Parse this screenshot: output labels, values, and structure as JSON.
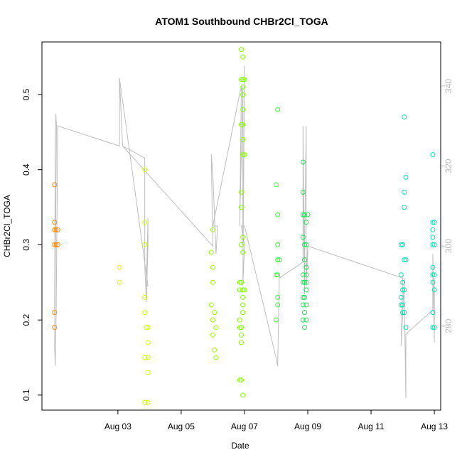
{
  "chart_data": {
    "type": "scatter",
    "title": "ATOM1 Southbound CHBr2Cl_TOGA",
    "xlabel": "Date",
    "ylabel": "CHBr2Cl_TOGA",
    "xlim": [
      0.6,
      13.2
    ],
    "ylim": [
      0.08,
      0.57
    ],
    "y2lim": [
      259,
      351
    ],
    "x_tick_values": [
      3,
      5,
      7,
      9,
      11,
      13
    ],
    "x_tick_labels": [
      "Aug 03",
      "Aug 05",
      "Aug 07",
      "Aug 09",
      "Aug 11",
      "Aug 13"
    ],
    "y_tick_values": [
      0.1,
      0.2,
      0.3,
      0.4,
      0.5
    ],
    "y_tick_labels": [
      "0.1",
      "0.2",
      "0.3",
      "0.4",
      "0.5"
    ],
    "y2_tick_values": [
      280,
      300,
      320,
      340
    ],
    "y2_tick_labels": [
      "280",
      "300",
      "320",
      "340"
    ],
    "grid": false,
    "colors": {
      "line": "#bebebe",
      "axis": "#000000",
      "right_axis": "#bbbbbb"
    },
    "series": [
      {
        "color": "#ff8c00",
        "points": [
          [
            1.0,
            0.38
          ],
          [
            1.0,
            0.33
          ],
          [
            1.0,
            0.32
          ],
          [
            1.05,
            0.32
          ],
          [
            1.1,
            0.32
          ],
          [
            1.0,
            0.3
          ],
          [
            1.05,
            0.3
          ],
          [
            1.1,
            0.3
          ],
          [
            1.0,
            0.21
          ],
          [
            1.0,
            0.19
          ]
        ]
      },
      {
        "color": "#e6e619",
        "points": [
          [
            3.05,
            0.27
          ],
          [
            3.05,
            0.25
          ]
        ]
      },
      {
        "color": "#ccff00",
        "points": [
          [
            3.85,
            0.4
          ],
          [
            3.85,
            0.33
          ],
          [
            3.85,
            0.3
          ],
          [
            3.85,
            0.23
          ],
          [
            3.85,
            0.21
          ],
          [
            3.9,
            0.19
          ],
          [
            3.95,
            0.19
          ],
          [
            3.95,
            0.17
          ],
          [
            3.85,
            0.15
          ],
          [
            3.95,
            0.15
          ],
          [
            3.95,
            0.13
          ],
          [
            3.85,
            0.09
          ],
          [
            3.95,
            0.09
          ]
        ]
      },
      {
        "color": "#99ff00",
        "points": [
          [
            6.0,
            0.32
          ],
          [
            5.95,
            0.29
          ],
          [
            6.0,
            0.27
          ],
          [
            6.0,
            0.25
          ],
          [
            5.95,
            0.22
          ],
          [
            6.05,
            0.21
          ],
          [
            6.0,
            0.2
          ],
          [
            6.1,
            0.19
          ],
          [
            6.0,
            0.18
          ],
          [
            6.05,
            0.16
          ],
          [
            6.1,
            0.15
          ]
        ]
      },
      {
        "color": "#80ff00",
        "points": [
          [
            6.9,
            0.56
          ],
          [
            6.95,
            0.55
          ],
          [
            6.9,
            0.52
          ],
          [
            6.95,
            0.52
          ],
          [
            7.0,
            0.52
          ],
          [
            6.95,
            0.51
          ],
          [
            6.95,
            0.5
          ],
          [
            6.95,
            0.48
          ],
          [
            6.9,
            0.46
          ],
          [
            6.95,
            0.46
          ],
          [
            6.95,
            0.44
          ],
          [
            6.95,
            0.42
          ],
          [
            7.0,
            0.42
          ],
          [
            6.9,
            0.37
          ],
          [
            6.9,
            0.35
          ],
          [
            6.95,
            0.31
          ],
          [
            6.9,
            0.3
          ],
          [
            6.95,
            0.29
          ],
          [
            6.85,
            0.25
          ],
          [
            6.9,
            0.25
          ],
          [
            6.85,
            0.24
          ],
          [
            6.95,
            0.24
          ],
          [
            7.0,
            0.24
          ],
          [
            6.95,
            0.23
          ],
          [
            6.95,
            0.22
          ],
          [
            6.95,
            0.21
          ],
          [
            6.85,
            0.2
          ],
          [
            6.9,
            0.19
          ],
          [
            6.85,
            0.19
          ],
          [
            6.9,
            0.18
          ],
          [
            6.9,
            0.17
          ],
          [
            6.85,
            0.12
          ],
          [
            6.9,
            0.12
          ],
          [
            6.95,
            0.1
          ]
        ]
      },
      {
        "color": "#33ff33",
        "points": [
          [
            8.05,
            0.48
          ],
          [
            8.0,
            0.38
          ],
          [
            8.05,
            0.34
          ],
          [
            8.05,
            0.3
          ],
          [
            8.05,
            0.28
          ],
          [
            8.1,
            0.28
          ],
          [
            8.0,
            0.26
          ],
          [
            8.05,
            0.26
          ],
          [
            8.05,
            0.23
          ],
          [
            8.05,
            0.22
          ],
          [
            8.0,
            0.2
          ]
        ]
      },
      {
        "color": "#19e64d",
        "points": [
          [
            8.85,
            0.41
          ],
          [
            8.85,
            0.37
          ],
          [
            8.85,
            0.34
          ],
          [
            8.9,
            0.34
          ],
          [
            9.0,
            0.34
          ],
          [
            8.95,
            0.33
          ],
          [
            8.85,
            0.31
          ],
          [
            8.9,
            0.3
          ],
          [
            8.95,
            0.3
          ],
          [
            8.9,
            0.28
          ],
          [
            8.95,
            0.27
          ],
          [
            8.95,
            0.26
          ],
          [
            8.85,
            0.26
          ],
          [
            8.9,
            0.25
          ],
          [
            8.85,
            0.25
          ],
          [
            8.95,
            0.25
          ],
          [
            8.95,
            0.24
          ],
          [
            8.85,
            0.23
          ],
          [
            8.9,
            0.23
          ],
          [
            8.85,
            0.22
          ],
          [
            8.95,
            0.22
          ],
          [
            8.9,
            0.21
          ],
          [
            8.85,
            0.2
          ],
          [
            8.95,
            0.2
          ],
          [
            8.9,
            0.19
          ]
        ]
      },
      {
        "color": "#00e6b3",
        "points": [
          [
            12.05,
            0.47
          ],
          [
            11.95,
            0.3
          ],
          [
            12.0,
            0.3
          ],
          [
            11.95,
            0.26
          ],
          [
            12.0,
            0.25
          ],
          [
            12.0,
            0.24
          ],
          [
            12.05,
            0.24
          ],
          [
            11.95,
            0.23
          ],
          [
            11.95,
            0.22
          ],
          [
            12.0,
            0.22
          ],
          [
            12.0,
            0.21
          ],
          [
            12.05,
            0.21
          ],
          [
            12.05,
            0.28
          ],
          [
            12.1,
            0.28
          ],
          [
            12.05,
            0.37
          ],
          [
            12.05,
            0.35
          ],
          [
            12.1,
            0.39
          ],
          [
            12.1,
            0.19
          ]
        ]
      },
      {
        "color": "#00e6b3",
        "points": [
          [
            12.95,
            0.42
          ],
          [
            12.95,
            0.33
          ],
          [
            12.95,
            0.32
          ],
          [
            13.0,
            0.33
          ],
          [
            12.95,
            0.31
          ],
          [
            12.95,
            0.3
          ],
          [
            13.0,
            0.3
          ],
          [
            12.95,
            0.27
          ],
          [
            13.0,
            0.26
          ],
          [
            12.95,
            0.26
          ],
          [
            12.95,
            0.25
          ],
          [
            13.0,
            0.24
          ],
          [
            12.95,
            0.21
          ],
          [
            12.95,
            0.19
          ],
          [
            13.0,
            0.19
          ]
        ]
      }
    ],
    "line": [
      [
        1.0,
        283
      ],
      [
        1.02,
        326
      ],
      [
        1.04,
        333
      ],
      [
        1.06,
        330
      ],
      [
        1.0,
        275
      ],
      [
        1.02,
        270
      ],
      [
        1.05,
        283
      ],
      [
        1.1,
        330
      ],
      [
        3.05,
        325
      ],
      [
        3.05,
        342
      ],
      [
        3.15,
        325
      ],
      [
        3.85,
        322
      ],
      [
        3.85,
        295
      ],
      [
        3.9,
        286
      ],
      [
        3.95,
        300
      ],
      [
        3.95,
        307
      ],
      [
        3.9,
        290
      ],
      [
        3.95,
        290
      ],
      [
        3.05,
        342
      ],
      [
        3.15,
        325
      ],
      [
        6.0,
        300
      ],
      [
        5.95,
        323
      ],
      [
        6.0,
        318
      ],
      [
        6.1,
        298
      ],
      [
        6.15,
        305
      ],
      [
        6.0,
        305
      ],
      [
        6.9,
        340
      ],
      [
        6.85,
        305
      ],
      [
        6.95,
        340
      ],
      [
        6.95,
        300
      ],
      [
        7.0,
        345
      ],
      [
        6.95,
        290
      ],
      [
        7.0,
        300
      ],
      [
        6.9,
        305
      ],
      [
        7.0,
        305
      ],
      [
        8.0,
        272
      ],
      [
        8.05,
        270
      ],
      [
        8.1,
        292
      ],
      [
        8.85,
        296
      ],
      [
        8.85,
        330
      ],
      [
        8.9,
        288
      ],
      [
        8.9,
        300
      ],
      [
        8.95,
        330
      ],
      [
        8.95,
        290
      ],
      [
        9.0,
        300
      ],
      [
        8.95,
        292
      ],
      [
        9.0,
        298
      ],
      [
        9.0,
        300
      ],
      [
        12.0,
        292
      ],
      [
        11.95,
        275
      ],
      [
        12.05,
        292
      ],
      [
        12.05,
        288
      ],
      [
        12.1,
        262
      ],
      [
        12.1,
        278
      ],
      [
        12.95,
        284
      ],
      [
        12.95,
        298
      ],
      [
        13.0,
        276
      ],
      [
        13.0,
        292
      ]
    ]
  }
}
